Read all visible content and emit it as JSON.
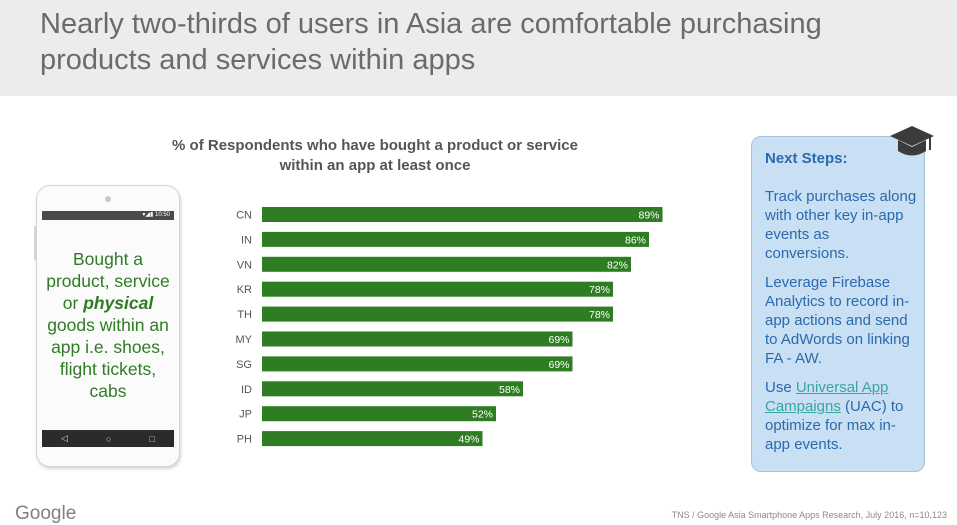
{
  "header": {
    "title": "Nearly two-thirds of users in Asia are comfortable purchasing products and services within apps"
  },
  "phone": {
    "status_text": "▾◢▮ 10:50",
    "text_before": "Bought a product, service or ",
    "text_emphasis": "physical",
    "text_after": " goods within an app i.e. shoes, flight tickets, cabs",
    "nav_back": "◁",
    "nav_home": "○",
    "nav_recent": "□"
  },
  "next_steps": {
    "title": "Next Steps:",
    "step1": "Track purchases along with other key in-app events as conversions.",
    "step2": "Leverage Firebase Analytics to record in-app actions and send to AdWords on linking FA - AW.",
    "step3_before": "Use ",
    "step3_link": "Universal App Campaigns",
    "step3_after": " (UAC) to optimize for max in-app events."
  },
  "footer": {
    "logo": "Google",
    "source": "TNS / Google Asia Smartphone Apps Research, July 2016, n=10,123"
  },
  "icons": {
    "graduation-cap": "graduation-cap-icon"
  },
  "colors": {
    "bar": "#2e7d22",
    "header_bg": "#ececec",
    "panel_bg": "#c9dff3",
    "panel_text": "#2a6aad",
    "phone_text": "#2f7c24"
  },
  "chart_data": {
    "type": "bar",
    "orientation": "horizontal",
    "title": "% of Respondents who have bought a product or service within an app at least once",
    "categories": [
      "CN",
      "IN",
      "VN",
      "KR",
      "TH",
      "MY",
      "SG",
      "ID",
      "JP",
      "PH"
    ],
    "values": [
      89,
      86,
      82,
      78,
      78,
      69,
      69,
      58,
      52,
      49
    ],
    "value_labels": [
      "89%",
      "86%",
      "82%",
      "78%",
      "78%",
      "69%",
      "69%",
      "58%",
      "52%",
      "49%"
    ],
    "unit": "%",
    "xlim": [
      0,
      100
    ],
    "grid": false,
    "legend": "none"
  }
}
